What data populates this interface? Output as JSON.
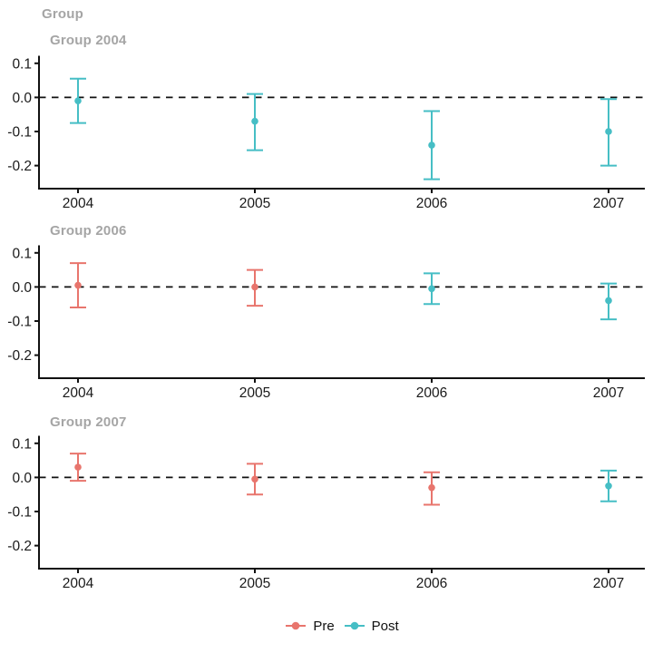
{
  "title": "Group",
  "legend": {
    "items": [
      {
        "label": "Pre",
        "color": "#E8756D"
      },
      {
        "label": "Post",
        "color": "#46BEC5"
      }
    ]
  },
  "chart_data": {
    "type": "pointrange",
    "title": "Group",
    "x_categories": [
      "2004",
      "2005",
      "2006",
      "2007"
    ],
    "y_ticks": [
      0.1,
      0.0,
      -0.1,
      -0.2
    ],
    "ylim": [
      -0.27,
      0.12
    ],
    "zero_line": 0,
    "grid": false,
    "legend_position": "bottom",
    "series_colors": {
      "Pre": "#E8756D",
      "Post": "#46BEC5"
    },
    "panels": [
      {
        "title": "Group 2004",
        "points": [
          {
            "x": "2004",
            "group": "Post",
            "estimate": -0.01,
            "lo": -0.075,
            "hi": 0.055
          },
          {
            "x": "2005",
            "group": "Post",
            "estimate": -0.07,
            "lo": -0.155,
            "hi": 0.01
          },
          {
            "x": "2006",
            "group": "Post",
            "estimate": -0.14,
            "lo": -0.24,
            "hi": -0.04
          },
          {
            "x": "2007",
            "group": "Post",
            "estimate": -0.1,
            "lo": -0.2,
            "hi": -0.005
          }
        ]
      },
      {
        "title": "Group 2006",
        "points": [
          {
            "x": "2004",
            "group": "Pre",
            "estimate": 0.005,
            "lo": -0.06,
            "hi": 0.07
          },
          {
            "x": "2005",
            "group": "Pre",
            "estimate": 0.0,
            "lo": -0.055,
            "hi": 0.05
          },
          {
            "x": "2006",
            "group": "Post",
            "estimate": -0.005,
            "lo": -0.05,
            "hi": 0.04
          },
          {
            "x": "2007",
            "group": "Post",
            "estimate": -0.04,
            "lo": -0.095,
            "hi": 0.01
          }
        ]
      },
      {
        "title": "Group 2007",
        "points": [
          {
            "x": "2004",
            "group": "Pre",
            "estimate": 0.03,
            "lo": -0.01,
            "hi": 0.07
          },
          {
            "x": "2005",
            "group": "Pre",
            "estimate": -0.005,
            "lo": -0.05,
            "hi": 0.04
          },
          {
            "x": "2006",
            "group": "Pre",
            "estimate": -0.03,
            "lo": -0.08,
            "hi": 0.015
          },
          {
            "x": "2007",
            "group": "Post",
            "estimate": -0.025,
            "lo": -0.07,
            "hi": 0.02
          }
        ]
      }
    ]
  }
}
